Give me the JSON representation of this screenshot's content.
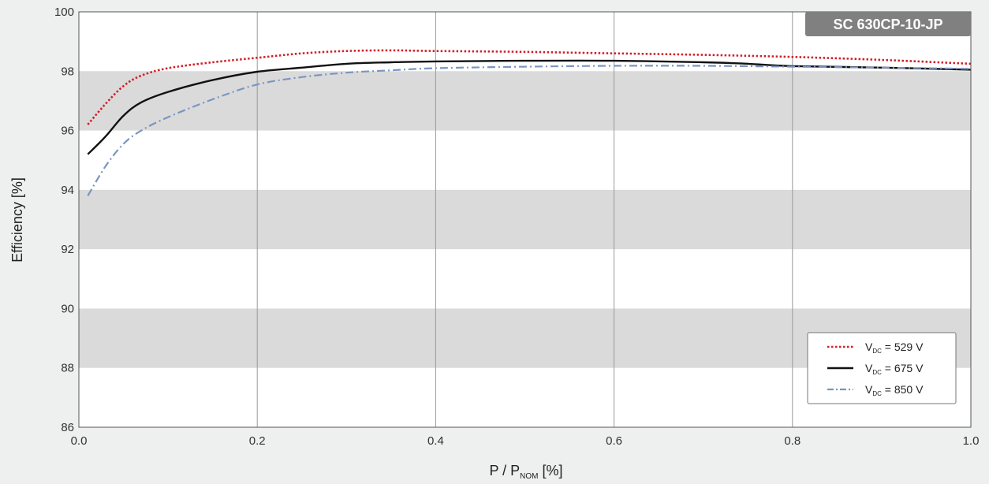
{
  "chart_data": {
    "type": "line",
    "title": "SC 630CP-10-JP",
    "ylabel": "Efficiency [%]",
    "xlabel": {
      "main": "P / P",
      "sub": "NOM",
      "suffix": " [%]"
    },
    "xlim": [
      0.0,
      1.0
    ],
    "ylim": [
      86,
      100
    ],
    "x_ticks": [
      0.0,
      0.2,
      0.4,
      0.6,
      0.8,
      1.0
    ],
    "x_tick_labels": [
      "0.0",
      "0.2",
      "0.4",
      "0.6",
      "0.8",
      "1.0"
    ],
    "y_ticks": [
      86,
      88,
      90,
      92,
      94,
      96,
      98,
      100
    ],
    "y_tick_labels": [
      "86",
      "88",
      "90",
      "92",
      "94",
      "96",
      "98",
      "100"
    ],
    "grid": "vertical lines; alternating horizontal gray bands",
    "legend_position": "bottom-right",
    "series": [
      {
        "label": {
          "main": "V",
          "sub": "DC",
          "suffix": " = 529 V"
        },
        "color": "#d0202a",
        "style": "dotted",
        "x": [
          0.01,
          0.03,
          0.05,
          0.07,
          0.1,
          0.15,
          0.2,
          0.25,
          0.3,
          0.35,
          0.4,
          0.5,
          0.6,
          0.7,
          0.8,
          0.9,
          1.0
        ],
        "y": [
          96.2,
          96.9,
          97.5,
          97.85,
          98.1,
          98.3,
          98.45,
          98.6,
          98.68,
          98.7,
          98.68,
          98.65,
          98.6,
          98.55,
          98.48,
          98.38,
          98.25
        ]
      },
      {
        "label": {
          "main": "V",
          "sub": "DC",
          "suffix": " = 675 V"
        },
        "color": "#111111",
        "style": "solid",
        "x": [
          0.01,
          0.03,
          0.05,
          0.07,
          0.1,
          0.15,
          0.2,
          0.25,
          0.3,
          0.35,
          0.4,
          0.5,
          0.6,
          0.7,
          0.75,
          0.8,
          0.9,
          1.0
        ],
        "y": [
          95.2,
          95.8,
          96.5,
          96.95,
          97.3,
          97.7,
          97.98,
          98.12,
          98.25,
          98.3,
          98.33,
          98.35,
          98.35,
          98.3,
          98.25,
          98.17,
          98.12,
          98.05
        ]
      },
      {
        "label": {
          "main": "V",
          "sub": "DC",
          "suffix": " = 850 V"
        },
        "color": "#7a95c1",
        "style": "dashdot",
        "x": [
          0.01,
          0.03,
          0.05,
          0.07,
          0.1,
          0.15,
          0.2,
          0.25,
          0.3,
          0.35,
          0.4,
          0.5,
          0.6,
          0.7,
          0.8,
          0.9,
          1.0
        ],
        "y": [
          93.8,
          94.8,
          95.55,
          96.0,
          96.45,
          97.05,
          97.55,
          97.8,
          97.95,
          98.03,
          98.1,
          98.15,
          98.18,
          98.18,
          98.15,
          98.12,
          98.08
        ]
      }
    ],
    "band_color": "#dadada",
    "plot_bg": "#ffffff",
    "grid_color": "#9a9a9a",
    "badge_color": "#808080"
  }
}
